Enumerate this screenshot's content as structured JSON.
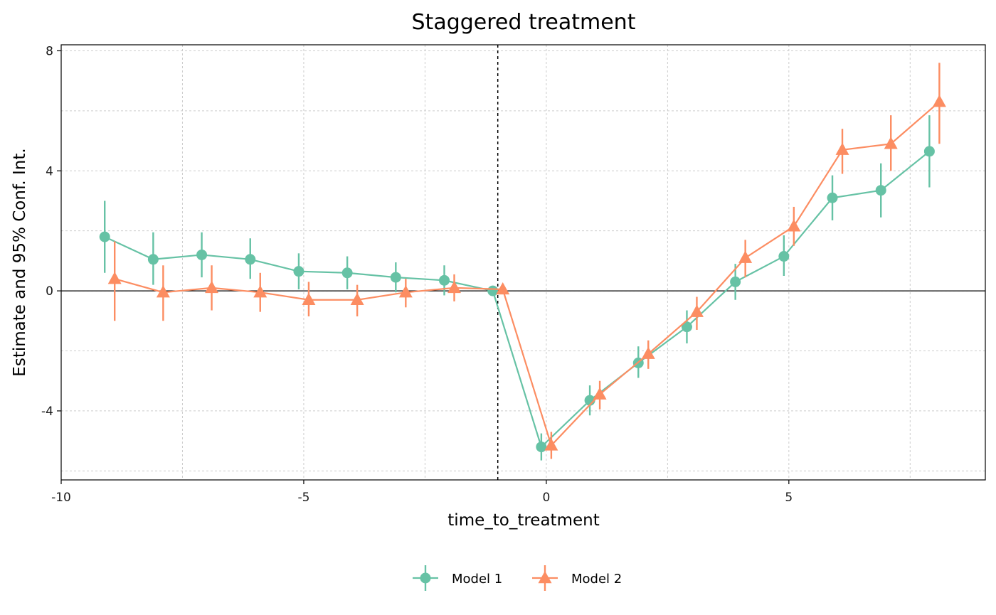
{
  "chart_data": {
    "type": "scatter",
    "title": "Staggered treatment",
    "xlabel": "time_to_treatment",
    "ylabel": "Estimate and 95% Conf. Int.",
    "xlim": [
      -10,
      9.05
    ],
    "ylim": [
      -6.3,
      8.2
    ],
    "x_ticks": [
      -10,
      -5,
      0,
      5
    ],
    "x_tick_labels": [
      "-10",
      "-5",
      "0",
      "5"
    ],
    "y_ticks": [
      -4,
      0,
      4,
      8
    ],
    "y_tick_labels": [
      "-4",
      "0",
      "4",
      "8"
    ],
    "grid": true,
    "reference_hline": 0,
    "reference_vline": -1,
    "legend_position": "bottom",
    "series": [
      {
        "name": "Model 1",
        "color": "#66c2a5",
        "marker": "circle",
        "points": [
          {
            "x": -9,
            "y": 1.8,
            "lo": 0.6,
            "hi": 3.0
          },
          {
            "x": -8,
            "y": 1.05,
            "lo": 0.2,
            "hi": 1.95
          },
          {
            "x": -7,
            "y": 1.2,
            "lo": 0.45,
            "hi": 1.95
          },
          {
            "x": -6,
            "y": 1.05,
            "lo": 0.4,
            "hi": 1.75
          },
          {
            "x": -5,
            "y": 0.65,
            "lo": 0.05,
            "hi": 1.25
          },
          {
            "x": -4,
            "y": 0.6,
            "lo": 0.05,
            "hi": 1.15
          },
          {
            "x": -3,
            "y": 0.45,
            "lo": -0.05,
            "hi": 0.95
          },
          {
            "x": -2,
            "y": 0.35,
            "lo": -0.15,
            "hi": 0.85
          },
          {
            "x": -1,
            "y": 0.0,
            "lo": 0.0,
            "hi": 0.0
          },
          {
            "x": 0,
            "y": -5.2,
            "lo": -5.65,
            "hi": -4.75
          },
          {
            "x": 1,
            "y": -3.65,
            "lo": -4.15,
            "hi": -3.15
          },
          {
            "x": 2,
            "y": -2.4,
            "lo": -2.9,
            "hi": -1.85
          },
          {
            "x": 3,
            "y": -1.2,
            "lo": -1.75,
            "hi": -0.65
          },
          {
            "x": 4,
            "y": 0.3,
            "lo": -0.3,
            "hi": 0.9
          },
          {
            "x": 5,
            "y": 1.15,
            "lo": 0.5,
            "hi": 1.85
          },
          {
            "x": 6,
            "y": 3.1,
            "lo": 2.35,
            "hi": 3.85
          },
          {
            "x": 7,
            "y": 3.35,
            "lo": 2.45,
            "hi": 4.25
          },
          {
            "x": 8,
            "y": 4.65,
            "lo": 3.45,
            "hi": 5.85
          }
        ]
      },
      {
        "name": "Model 2",
        "color": "#fc8d62",
        "marker": "triangle",
        "points": [
          {
            "x": -9,
            "y": 0.4,
            "lo": -1.0,
            "hi": 1.65
          },
          {
            "x": -8,
            "y": -0.05,
            "lo": -1.0,
            "hi": 0.85
          },
          {
            "x": -7,
            "y": 0.1,
            "lo": -0.65,
            "hi": 0.85
          },
          {
            "x": -6,
            "y": -0.05,
            "lo": -0.7,
            "hi": 0.6
          },
          {
            "x": -5,
            "y": -0.3,
            "lo": -0.85,
            "hi": 0.3
          },
          {
            "x": -4,
            "y": -0.3,
            "lo": -0.85,
            "hi": 0.2
          },
          {
            "x": -3,
            "y": -0.05,
            "lo": -0.55,
            "hi": 0.4
          },
          {
            "x": -2,
            "y": 0.1,
            "lo": -0.35,
            "hi": 0.55
          },
          {
            "x": -1,
            "y": 0.05,
            "lo": 0.05,
            "hi": 0.05
          },
          {
            "x": 0,
            "y": -5.15,
            "lo": -5.6,
            "hi": -4.7
          },
          {
            "x": 1,
            "y": -3.45,
            "lo": -3.95,
            "hi": -3.0
          },
          {
            "x": 2,
            "y": -2.1,
            "lo": -2.6,
            "hi": -1.65
          },
          {
            "x": 3,
            "y": -0.7,
            "lo": -1.3,
            "hi": -0.2
          },
          {
            "x": 4,
            "y": 1.1,
            "lo": 0.45,
            "hi": 1.7
          },
          {
            "x": 5,
            "y": 2.15,
            "lo": 1.5,
            "hi": 2.8
          },
          {
            "x": 6,
            "y": 4.7,
            "lo": 3.9,
            "hi": 5.4
          },
          {
            "x": 7,
            "y": 4.9,
            "lo": 4.0,
            "hi": 5.85
          },
          {
            "x": 8,
            "y": 6.3,
            "lo": 4.9,
            "hi": 7.6
          }
        ]
      }
    ]
  }
}
